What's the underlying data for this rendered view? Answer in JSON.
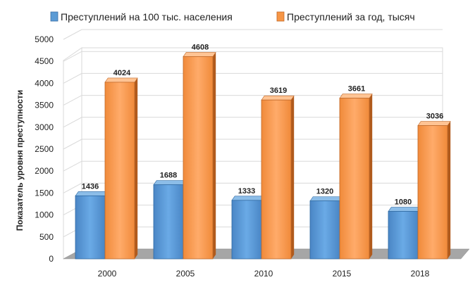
{
  "chart_data": {
    "type": "bar",
    "categories": [
      "2000",
      "2005",
      "2010",
      "2015",
      "2018"
    ],
    "series": [
      {
        "name": "Преступлений на 100 тыс. населения",
        "color": "#5b9bd5",
        "values": [
          1436,
          1688,
          1333,
          1320,
          1080
        ]
      },
      {
        "name": "Преступлений за год, тысяч",
        "color": "#f79646",
        "values": [
          4024,
          4608,
          3619,
          3661,
          3036
        ]
      }
    ],
    "ylabel": "Показатель уровня преступности",
    "xlabel": "",
    "ylim": [
      0,
      5000
    ],
    "yticks": [
      "0",
      "500",
      "1000",
      "1500",
      "2000",
      "2500",
      "3000",
      "3500",
      "4000",
      "4500",
      "5000"
    ],
    "grid": true,
    "legend_position": "top",
    "style": "3d-clustered-column"
  }
}
